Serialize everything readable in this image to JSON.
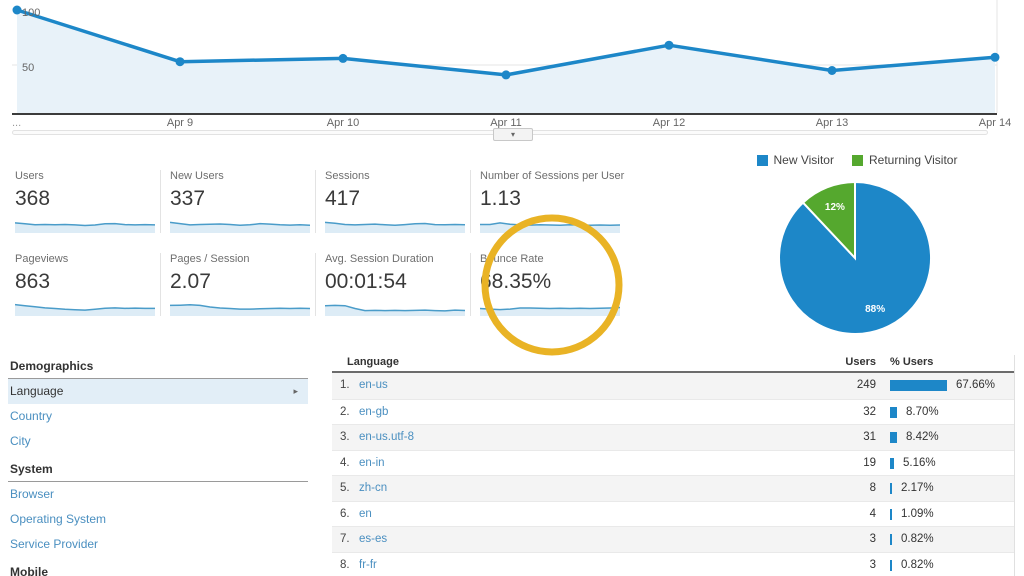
{
  "colors": {
    "blue": "#1d87c8",
    "green": "#55a82e",
    "area_fill": "#e8f2f9",
    "spark_line": "#4a9cc9",
    "spark_fill": "#ddecf6",
    "link_blue": "#4a8fc0",
    "annotation_yellow": "#e9b325"
  },
  "icons": {
    "slider_chevron": "▾",
    "selected_arrow": "▸"
  },
  "chart_data": {
    "timeline": {
      "type": "line",
      "x_labels": [
        "...",
        "Apr 9",
        "Apr 10",
        "Apr 11",
        "Apr 12",
        "Apr 13",
        "Apr 14"
      ],
      "values": [
        100,
        53,
        56,
        41,
        68,
        45,
        57
      ],
      "yticks": [
        "100",
        "50"
      ],
      "ylim": [
        0,
        110
      ],
      "grid": "horizontal-50"
    },
    "visitor_pie": {
      "type": "pie",
      "labels": [
        "New Visitor",
        "Returning Visitor"
      ],
      "values": [
        88,
        12
      ],
      "value_labels": [
        "88%",
        "12%"
      ],
      "legend_position": "top"
    }
  },
  "scorecards": {
    "rows": [
      [
        {
          "label": "Users",
          "value": "368",
          "spark": [
            62,
            55,
            48,
            50,
            48,
            50,
            47,
            42,
            46,
            55,
            57,
            49,
            47,
            49,
            47
          ]
        },
        {
          "label": "New Users",
          "value": "337",
          "spark": [
            66,
            57,
            47,
            50,
            52,
            54,
            50,
            44,
            48,
            57,
            53,
            48,
            45,
            48,
            44
          ]
        },
        {
          "label": "Sessions",
          "value": "417",
          "spark": [
            66,
            59,
            50,
            47,
            50,
            53,
            48,
            44,
            49,
            55,
            58,
            49,
            48,
            50,
            48
          ]
        },
        {
          "label": "Number of Sessions per User",
          "value": "1.13",
          "spark": [
            50,
            50,
            62,
            52,
            47,
            45,
            48,
            46,
            44,
            48,
            46,
            44,
            46,
            44,
            46
          ]
        }
      ],
      [
        {
          "label": "Pageviews",
          "value": "863",
          "spark": [
            72,
            63,
            55,
            47,
            42,
            36,
            32,
            30,
            36,
            44,
            47,
            43,
            45,
            43,
            43
          ]
        },
        {
          "label": "Pages / Session",
          "value": "2.07",
          "spark": [
            66,
            68,
            71,
            66,
            54,
            46,
            42,
            38,
            38,
            40,
            42,
            44,
            42,
            44,
            42
          ]
        },
        {
          "label": "Avg. Session Duration",
          "value": "00:01:54",
          "spark": [
            64,
            66,
            64,
            42,
            26,
            28,
            26,
            28,
            26,
            28,
            30,
            26,
            24,
            30,
            27
          ]
        },
        {
          "label": "Bounce Rate",
          "value": "68.35%",
          "spark": [
            42,
            38,
            34,
            38,
            46,
            46,
            44,
            42,
            44,
            42,
            44,
            42,
            44,
            46,
            50
          ]
        }
      ]
    ]
  },
  "sidebar": {
    "sections": [
      {
        "heading": "Demographics",
        "items": [
          {
            "label": "Language",
            "selected": true
          },
          {
            "label": "Country"
          },
          {
            "label": "City"
          }
        ]
      },
      {
        "heading": "System",
        "items": [
          {
            "label": "Browser"
          },
          {
            "label": "Operating System"
          },
          {
            "label": "Service Provider"
          }
        ]
      },
      {
        "heading": "Mobile",
        "items": []
      }
    ]
  },
  "language_table": {
    "columns": [
      "Language",
      "Users",
      "% Users"
    ],
    "rows": [
      {
        "rank": "1.",
        "language": "en-us",
        "users": "249",
        "pct": "67.66%",
        "pct_value": 67.66
      },
      {
        "rank": "2.",
        "language": "en-gb",
        "users": "32",
        "pct": "8.70%",
        "pct_value": 8.7
      },
      {
        "rank": "3.",
        "language": "en-us.utf-8",
        "users": "31",
        "pct": "8.42%",
        "pct_value": 8.42
      },
      {
        "rank": "4.",
        "language": "en-in",
        "users": "19",
        "pct": "5.16%",
        "pct_value": 5.16
      },
      {
        "rank": "5.",
        "language": "zh-cn",
        "users": "8",
        "pct": "2.17%",
        "pct_value": 2.17
      },
      {
        "rank": "6.",
        "language": "en",
        "users": "4",
        "pct": "1.09%",
        "pct_value": 1.09
      },
      {
        "rank": "7.",
        "language": "es-es",
        "users": "3",
        "pct": "0.82%",
        "pct_value": 0.82
      },
      {
        "rank": "8.",
        "language": "fr-fr",
        "users": "3",
        "pct": "0.82%",
        "pct_value": 0.82
      }
    ]
  }
}
